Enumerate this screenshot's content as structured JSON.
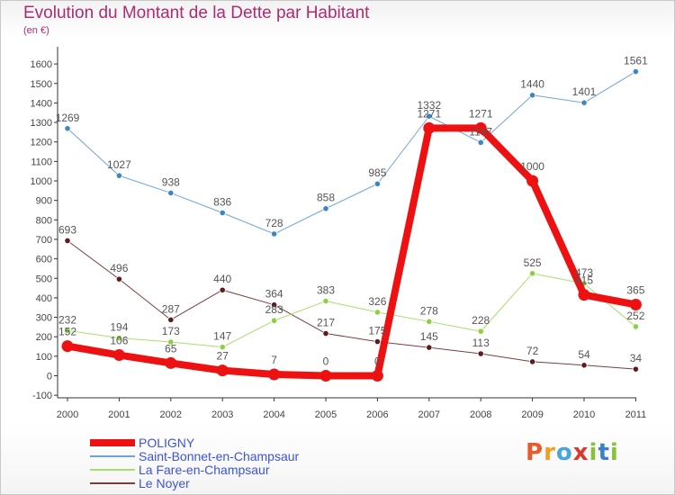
{
  "title": "Evolution du Montant de la Dette par Habitant",
  "unit": "(en €)",
  "logo": {
    "letters": [
      "P",
      "r",
      "o",
      "x",
      "i",
      "t",
      "i"
    ],
    "colors": [
      "#e85a2a",
      "#f0a020",
      "#4aa5dd",
      "#d93a30",
      "#88c23a",
      "#3a7fd0",
      "#88c23a"
    ]
  },
  "chart_data": {
    "type": "line",
    "title": "Evolution du Montant de la Dette par Habitant",
    "subtitle": "(en €)",
    "xlabel": "",
    "ylabel": "",
    "x": [
      "2000",
      "2001",
      "2002",
      "2003",
      "2004",
      "2005",
      "2006",
      "2007",
      "2008",
      "2009",
      "2010",
      "2011"
    ],
    "y_ticks": [
      -100,
      0,
      100,
      200,
      300,
      400,
      500,
      600,
      700,
      800,
      900,
      1000,
      1100,
      1200,
      1300,
      1400,
      1500,
      1600
    ],
    "ylim": [
      -100,
      1600
    ],
    "grid": false,
    "legend_position": "bottom-left",
    "series": [
      {
        "name": "POLIGNY",
        "color": "#ee1111",
        "width": 8,
        "values": [
          152,
          106,
          65,
          27,
          7,
          0,
          0,
          1271,
          1271,
          1000,
          415,
          365
        ],
        "labels": [
          "152",
          "106",
          "65",
          "27",
          "7",
          "0",
          "0",
          "1271",
          "1271",
          "1000",
          "415",
          "365"
        ]
      },
      {
        "name": "Saint-Bonnet-en-Champsaur",
        "color": "#6fa3d8",
        "marker": "#3a86c8",
        "width": 1,
        "values": [
          1269,
          1027,
          938,
          836,
          728,
          858,
          985,
          1332,
          1197,
          1440,
          1401,
          1561
        ],
        "labels": [
          "1269",
          "1027",
          "938",
          "836",
          "728",
          "858",
          "985",
          "1332",
          "1197",
          "1440",
          "1401",
          "1561"
        ]
      },
      {
        "name": "La Fare-en-Champsaur",
        "color": "#a7df6a",
        "marker": "#8ad040",
        "width": 1,
        "values": [
          232,
          194,
          173,
          147,
          283,
          383,
          326,
          278,
          228,
          525,
          473,
          252
        ],
        "labels": [
          "232",
          "194",
          "173",
          "147",
          "283",
          "383",
          "326",
          "278",
          "228",
          "525",
          "473",
          "252"
        ]
      },
      {
        "name": "Le Noyer",
        "color": "#7a3e3e",
        "marker": "#5a1c1c",
        "width": 1,
        "values": [
          693,
          496,
          287,
          440,
          364,
          217,
          175,
          145,
          113,
          72,
          54,
          34
        ],
        "labels": [
          "693",
          "496",
          "287",
          "440",
          "364",
          "217",
          "175",
          "145",
          "113",
          "72",
          "54",
          "34"
        ]
      }
    ]
  }
}
